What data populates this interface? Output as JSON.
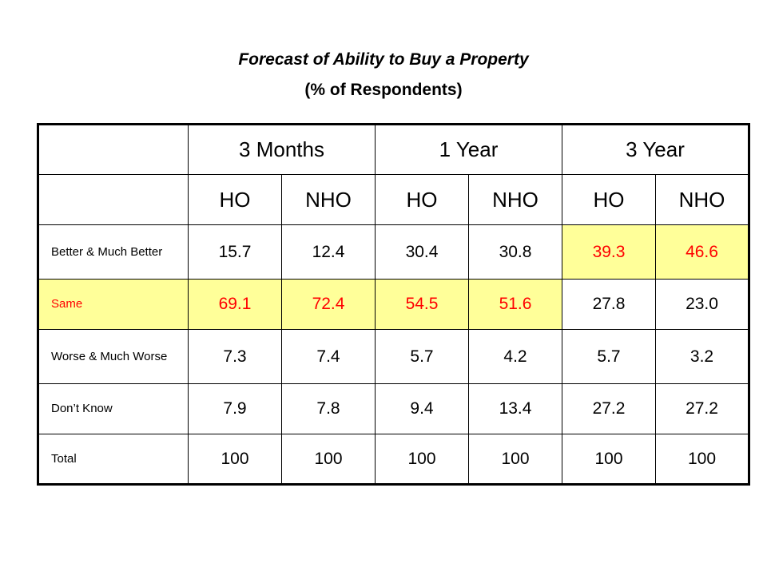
{
  "title": "Forecast of Ability to Buy a Property",
  "subtitle": "(% of Respondents)",
  "periods": [
    "3 Months",
    "1 Year",
    "3 Year"
  ],
  "subheaders": [
    "HO",
    "NHO",
    "HO",
    "NHO",
    "HO",
    "NHO"
  ],
  "rows": [
    {
      "label": "Better & Much Better",
      "values": [
        "15.7",
        "12.4",
        "30.4",
        "30.8",
        "39.3",
        "46.6"
      ]
    },
    {
      "label": "Same",
      "values": [
        "69.1",
        "72.4",
        "54.5",
        "51.6",
        "27.8",
        "23.0"
      ]
    },
    {
      "label": "Worse & Much Worse",
      "values": [
        "7.3",
        "7.4",
        "5.7",
        "4.2",
        "5.7",
        "3.2"
      ]
    },
    {
      "label": "Don’t Know",
      "values": [
        "7.9",
        "7.8",
        "9.4",
        "13.4",
        "27.2",
        "27.2"
      ]
    },
    {
      "label": "Total",
      "values": [
        "100",
        "100",
        "100",
        "100",
        "100",
        "100"
      ]
    }
  ],
  "highlight_color": "#ffff99",
  "highlight_text_color": "#ff0000"
}
